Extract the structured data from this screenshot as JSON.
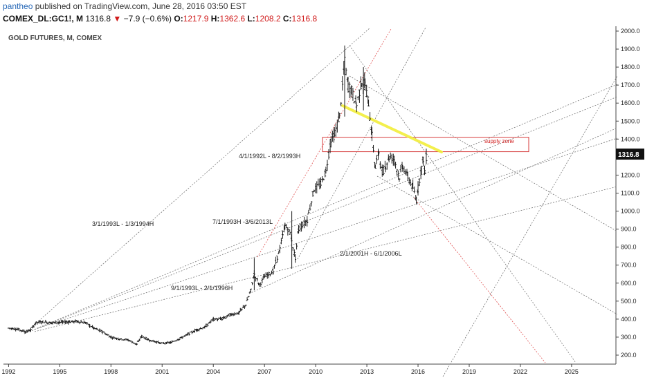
{
  "header": {
    "author": "pantheo",
    "published": "published on TradingView.com, June 28, 2016 03:50 EST"
  },
  "symbol": {
    "ticker": "COMEX_DL:GC1!, M",
    "last": "1316.8",
    "change": "−7.9 (−0.6%)",
    "open_label": "O:",
    "open": "1217.9",
    "high_label": "H:",
    "high": "1362.6",
    "low_label": "L:",
    "low": "1208.2",
    "close_label": "C:",
    "close": "1316.8",
    "down_arrow": "▼"
  },
  "colors": {
    "bars": "#1a1a1a",
    "trend_dotted": "#777777",
    "trend_red": "#e05050",
    "supply_box": "#d63a3a",
    "supply_text": "#d01818",
    "highlight": "#f2ee3a",
    "price_tag_bg": "#111111"
  },
  "chart_data": {
    "type": "bar",
    "title": "GOLD FUTURES, M, COMEX",
    "x_ticks": [
      "1992",
      "1995",
      "1998",
      "2001",
      "2004",
      "2007",
      "2010",
      "2013",
      "2016",
      "2019",
      "2022",
      "2025"
    ],
    "y_ticks": [
      "200.0",
      "300.0",
      "400.0",
      "500.0",
      "600.0",
      "700.0",
      "800.0",
      "900.0",
      "1000.0",
      "1100.0",
      "1200.0",
      "1300.0",
      "1400.0",
      "1500.0",
      "1600.0",
      "1700.0",
      "1800.0",
      "1900.0",
      "2000.0"
    ],
    "ylim": [
      150,
      2040
    ],
    "xlim": [
      1991.7,
      2027.6
    ],
    "last_price_label": "1316.8",
    "price_path": [
      [
        1992.0,
        350
      ],
      [
        1992.5,
        345
      ],
      [
        1993.0,
        330
      ],
      [
        1993.3,
        340
      ],
      [
        1993.6,
        380
      ],
      [
        1994.0,
        385
      ],
      [
        1994.5,
        380
      ],
      [
        1995.0,
        382
      ],
      [
        1995.5,
        385
      ],
      [
        1996.0,
        388
      ],
      [
        1996.5,
        380
      ],
      [
        1997.0,
        350
      ],
      [
        1997.5,
        330
      ],
      [
        1998.0,
        300
      ],
      [
        1998.5,
        290
      ],
      [
        1999.0,
        285
      ],
      [
        1999.5,
        260
      ],
      [
        1999.8,
        305
      ],
      [
        2000.2,
        285
      ],
      [
        2000.6,
        275
      ],
      [
        2001.0,
        265
      ],
      [
        2001.5,
        270
      ],
      [
        2002.0,
        290
      ],
      [
        2002.5,
        315
      ],
      [
        2003.0,
        340
      ],
      [
        2003.5,
        355
      ],
      [
        2004.0,
        400
      ],
      [
        2004.5,
        400
      ],
      [
        2005.0,
        425
      ],
      [
        2005.5,
        435
      ],
      [
        2005.9,
        480
      ],
      [
        2006.2,
        560
      ],
      [
        2006.4,
        650
      ],
      [
        2006.7,
        590
      ],
      [
        2007.0,
        635
      ],
      [
        2007.5,
        665
      ],
      [
        2007.9,
        790
      ],
      [
        2008.2,
        920
      ],
      [
        2008.5,
        880
      ],
      [
        2008.8,
        740
      ],
      [
        2009.0,
        900
      ],
      [
        2009.5,
        950
      ],
      [
        2009.9,
        1120
      ],
      [
        2010.3,
        1150
      ],
      [
        2010.6,
        1220
      ],
      [
        2010.9,
        1400
      ],
      [
        2011.1,
        1420
      ],
      [
        2011.4,
        1530
      ],
      [
        2011.7,
        1830
      ],
      [
        2011.9,
        1700
      ],
      [
        2012.1,
        1670
      ],
      [
        2012.4,
        1590
      ],
      [
        2012.7,
        1720
      ],
      [
        2012.9,
        1700
      ],
      [
        2013.1,
        1600
      ],
      [
        2013.3,
        1420
      ],
      [
        2013.5,
        1240
      ],
      [
        2013.7,
        1330
      ],
      [
        2013.9,
        1210
      ],
      [
        2014.1,
        1250
      ],
      [
        2014.3,
        1300
      ],
      [
        2014.6,
        1290
      ],
      [
        2014.9,
        1190
      ],
      [
        2015.1,
        1250
      ],
      [
        2015.4,
        1190
      ],
      [
        2015.7,
        1130
      ],
      [
        2015.9,
        1060
      ],
      [
        2016.0,
        1130
      ],
      [
        2016.2,
        1240
      ],
      [
        2016.3,
        1290
      ],
      [
        2016.4,
        1210
      ],
      [
        2016.5,
        1316.8
      ]
    ],
    "annotations": [
      "4/1/1992L - 8/2/1993H",
      "3/1/1993L - 1/3/1994H",
      "7/1/1993H -3/6/2013L",
      "9/1/1993L - 2/1/1996H",
      "2/1/2001H - 6/1/2006L",
      "supply zone"
    ],
    "supply_zone": [
      1330,
      1410
    ],
    "grid": false
  }
}
